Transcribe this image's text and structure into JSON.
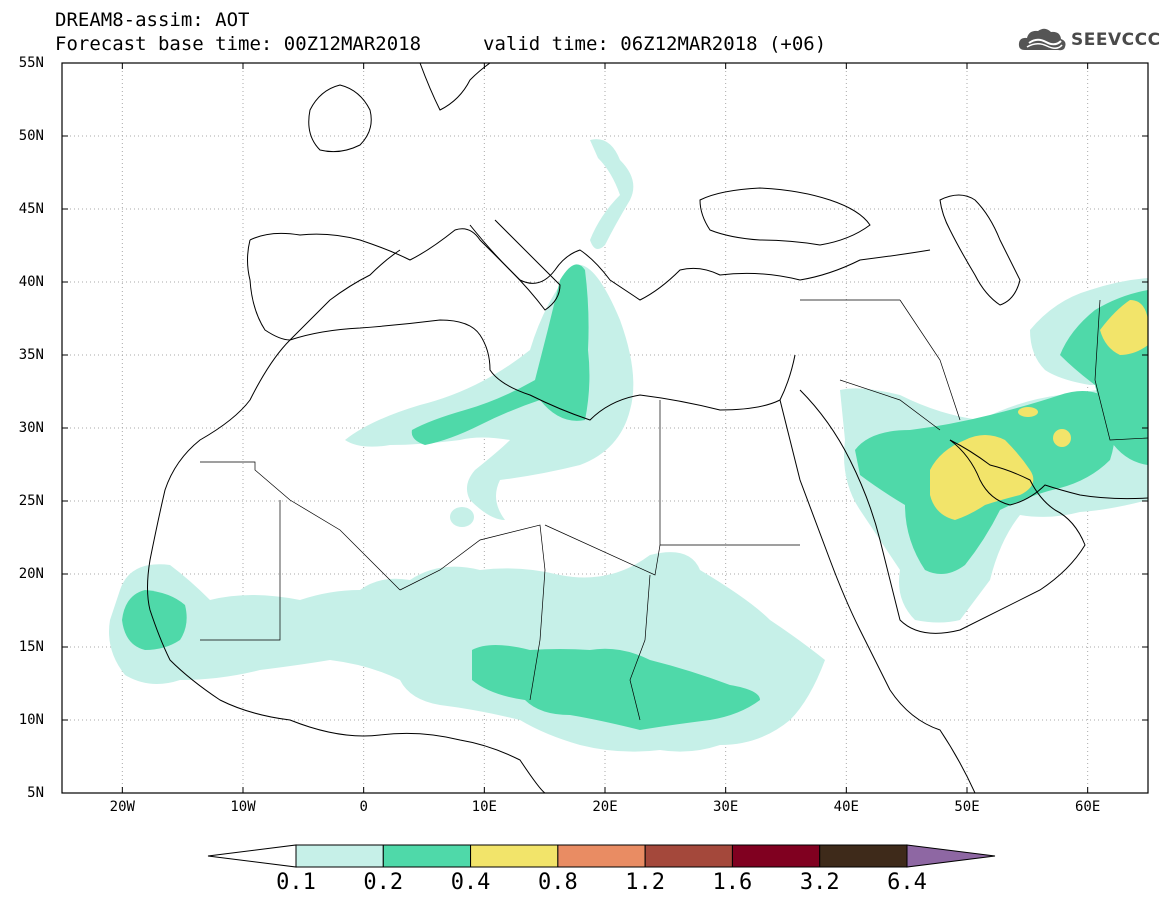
{
  "header": {
    "model_line": "DREAM8-assim: AOT",
    "base_time": "Forecast base time: 00Z12MAR2018",
    "valid_time": "valid time: 06Z12MAR2018 (+06)",
    "logo_text": "SEEVCCC",
    "logo_icon": "cloud-icon"
  },
  "map": {
    "variable": "AOT",
    "projection": "lat-lon",
    "extent": {
      "lon": [
        -25,
        65
      ],
      "lat": [
        5,
        55
      ]
    },
    "lat_ticks": [
      "55N",
      "50N",
      "45N",
      "40N",
      "35N",
      "30N",
      "25N",
      "20N",
      "15N",
      "10N",
      "5N"
    ],
    "lon_ticks": [
      "20W",
      "10W",
      "0",
      "10E",
      "20E",
      "30E",
      "40E",
      "50E",
      "60E"
    ],
    "gridlines": "dotted",
    "fields": [
      {
        "level": 0.1,
        "color": "#c6f0e8",
        "regions": [
          "West Africa / Sahel",
          "Libya coast",
          "Central Sahara",
          "Arabian Peninsula",
          "Iran / Turkmenistan"
        ]
      },
      {
        "level": 0.2,
        "color": "#4fd9a9",
        "regions": [
          "Senegal / Mauritania coast",
          "Gulf of Sidra plume",
          "Nigeria / Chad / Sudan belt",
          "Eastern Arabia",
          "Iran"
        ]
      },
      {
        "level": 0.4,
        "color": "#f2e46a",
        "regions": [
          "Eastern Saudi Arabia / Persian Gulf",
          "Northeast Iran"
        ]
      }
    ]
  },
  "colorbar": {
    "labels": [
      "0.1",
      "0.2",
      "0.4",
      "0.8",
      "1.2",
      "1.6",
      "3.2",
      "6.4"
    ],
    "colors": [
      "#ffffff",
      "#c6f0e8",
      "#4fd9a9",
      "#f2e46a",
      "#e98c63",
      "#a4483b",
      "#800020",
      "#3e2a1a",
      "#8e67a3"
    ]
  }
}
